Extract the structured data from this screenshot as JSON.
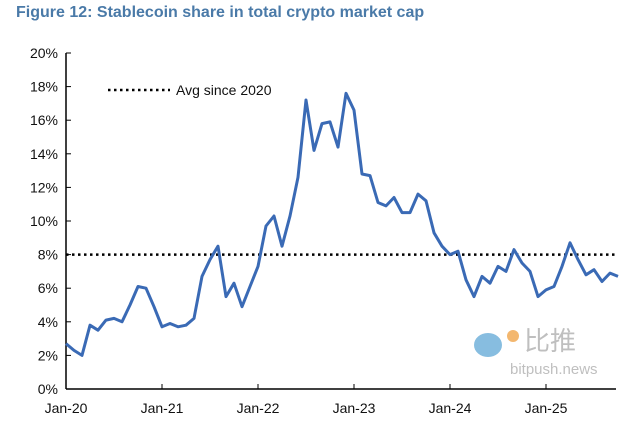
{
  "chart_data": {
    "type": "line",
    "title": "Figure 12: Stablecoin share in total crypto market cap",
    "xlabel": "",
    "ylabel": "",
    "ylim": [
      0,
      20
    ],
    "yticks": [
      "0%",
      "2%",
      "4%",
      "6%",
      "8%",
      "10%",
      "12%",
      "14%",
      "16%",
      "18%",
      "20%"
    ],
    "xticks": [
      "Jan-20",
      "Jan-21",
      "Jan-22",
      "Jan-23",
      "Jan-24",
      "Jan-25"
    ],
    "grid": false,
    "legend": {
      "placement": "top-left",
      "entries": [
        "Avg since 2020"
      ]
    },
    "reference_line": {
      "name": "Avg since 2020",
      "value": 8,
      "style": "dotted",
      "color": "#000000"
    },
    "series": [
      {
        "color": "#3a6ab5",
        "x": [
          "2020-01",
          "2020-02",
          "2020-03",
          "2020-04",
          "2020-05",
          "2020-06",
          "2020-07",
          "2020-08",
          "2020-09",
          "2020-10",
          "2020-11",
          "2020-12",
          "2021-01",
          "2021-02",
          "2021-03",
          "2021-04",
          "2021-05",
          "2021-06",
          "2021-07",
          "2021-08",
          "2021-09",
          "2021-10",
          "2021-11",
          "2021-12",
          "2022-01",
          "2022-02",
          "2022-03",
          "2022-04",
          "2022-05",
          "2022-06",
          "2022-07",
          "2022-08",
          "2022-09",
          "2022-10",
          "2022-11",
          "2022-12",
          "2023-01",
          "2023-02",
          "2023-03",
          "2023-04",
          "2023-05",
          "2023-06",
          "2023-07",
          "2023-08",
          "2023-09",
          "2023-10",
          "2023-11",
          "2023-12",
          "2024-01",
          "2024-02",
          "2024-03",
          "2024-04",
          "2024-05",
          "2024-06",
          "2024-07",
          "2024-08",
          "2024-09",
          "2024-10",
          "2024-11",
          "2024-12",
          "2025-01",
          "2025-02",
          "2025-03",
          "2025-04",
          "2025-05",
          "2025-06",
          "2025-07",
          "2025-08",
          "2025-09",
          "2025-10"
        ],
        "values": [
          2.7,
          2.3,
          2.0,
          3.8,
          3.5,
          4.1,
          4.2,
          4.0,
          5.0,
          6.1,
          6.0,
          4.9,
          3.7,
          3.9,
          3.7,
          3.8,
          4.2,
          6.7,
          7.7,
          8.5,
          5.5,
          6.3,
          4.9,
          6.1,
          7.3,
          9.7,
          10.3,
          8.5,
          10.3,
          12.6,
          17.2,
          14.2,
          15.8,
          15.9,
          14.4,
          17.6,
          16.6,
          12.8,
          12.7,
          11.1,
          10.9,
          11.4,
          10.5,
          10.5,
          11.6,
          11.2,
          9.3,
          8.5,
          8.0,
          8.2,
          6.5,
          5.5,
          6.7,
          6.3,
          7.3,
          7.0,
          8.3,
          7.5,
          7.0,
          5.5,
          5.9,
          6.1,
          7.3,
          8.7,
          7.7,
          6.8,
          7.1,
          6.4,
          6.9,
          6.7
        ]
      }
    ]
  },
  "watermark": {
    "text_cn": "比推",
    "text_en": "bitpush.news"
  }
}
